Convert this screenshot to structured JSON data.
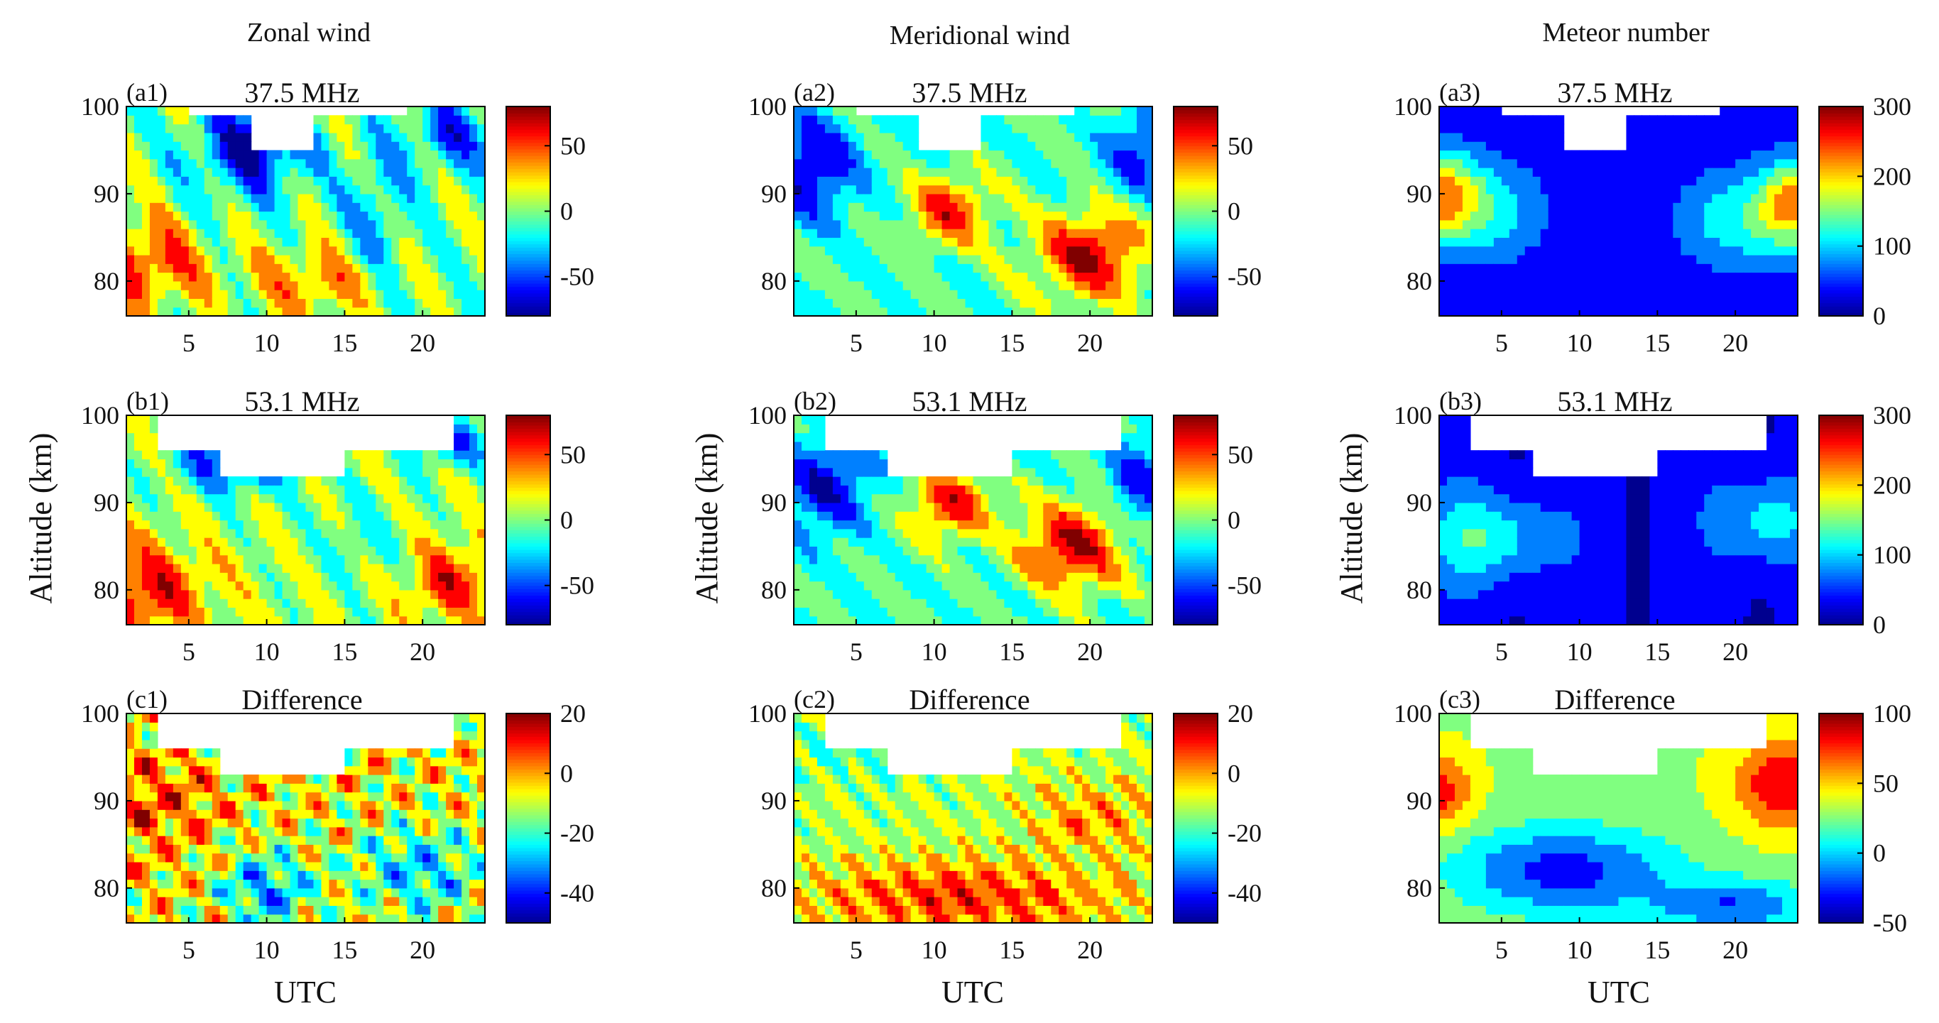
{
  "figure": {
    "column_titles": [
      "Zonal wind",
      "Meridional wind",
      "Meteor number"
    ],
    "ylabel": "Altitude (km)",
    "xlabel": "UTC",
    "colors": {
      "axis": "#000000",
      "contour_line": "#000000",
      "zero_line": "#ffffff",
      "jet": [
        "#00008f",
        "#0000ff",
        "#0080ff",
        "#00ffff",
        "#80ff80",
        "#ffff00",
        "#ff8000",
        "#ff0000",
        "#800000"
      ]
    }
  },
  "chart_data": [
    {
      "id": "a1",
      "label": "(a1)",
      "title": "37.5 MHz",
      "type": "heatmap",
      "xticks": [
        5,
        10,
        15,
        20
      ],
      "yticks": [
        80,
        90,
        100
      ],
      "xlim": [
        1,
        24
      ],
      "ylim": [
        76,
        100
      ],
      "clim": [
        -80,
        80
      ],
      "cticks": [
        50,
        0,
        -50
      ]
    },
    {
      "id": "a2",
      "label": "(a2)",
      "title": "37.5 MHz",
      "type": "heatmap",
      "xticks": [
        5,
        10,
        15,
        20
      ],
      "yticks": [
        80,
        90,
        100
      ],
      "xlim": [
        1,
        24
      ],
      "ylim": [
        76,
        100
      ],
      "clim": [
        -80,
        80
      ],
      "cticks": [
        50,
        0,
        -50
      ]
    },
    {
      "id": "a3",
      "label": "(a3)",
      "title": "37.5 MHz",
      "type": "heatmap",
      "xticks": [
        5,
        10,
        15,
        20
      ],
      "yticks": [
        80,
        90,
        100
      ],
      "xlim": [
        1,
        24
      ],
      "ylim": [
        76,
        100
      ],
      "clim": [
        0,
        300
      ],
      "cticks": [
        300,
        200,
        100,
        0
      ]
    },
    {
      "id": "b1",
      "label": "(b1)",
      "title": "53.1 MHz",
      "type": "heatmap",
      "xticks": [
        5,
        10,
        15,
        20
      ],
      "yticks": [
        80,
        90,
        100
      ],
      "xlim": [
        1,
        24
      ],
      "ylim": [
        76,
        100
      ],
      "clim": [
        -80,
        80
      ],
      "cticks": [
        50,
        0,
        -50
      ]
    },
    {
      "id": "b2",
      "label": "(b2)",
      "title": "53.1 MHz",
      "type": "heatmap",
      "xticks": [
        5,
        10,
        15,
        20
      ],
      "yticks": [
        80,
        90,
        100
      ],
      "xlim": [
        1,
        24
      ],
      "ylim": [
        76,
        100
      ],
      "clim": [
        -80,
        80
      ],
      "cticks": [
        50,
        0,
        -50
      ]
    },
    {
      "id": "b3",
      "label": "(b3)",
      "title": "53.1 MHz",
      "type": "heatmap",
      "xticks": [
        5,
        10,
        15,
        20
      ],
      "yticks": [
        80,
        90,
        100
      ],
      "xlim": [
        1,
        24
      ],
      "ylim": [
        76,
        100
      ],
      "clim": [
        0,
        300
      ],
      "cticks": [
        300,
        200,
        100,
        0
      ]
    },
    {
      "id": "c1",
      "label": "(c1)",
      "title": "Difference",
      "type": "heatmap",
      "xticks": [
        5,
        10,
        15,
        20
      ],
      "yticks": [
        80,
        90,
        100
      ],
      "xlim": [
        1,
        24
      ],
      "ylim": [
        76,
        100
      ],
      "clim": [
        -50,
        20
      ],
      "cticks": [
        20,
        0,
        -20,
        -40
      ]
    },
    {
      "id": "c2",
      "label": "(c2)",
      "title": "Difference",
      "type": "heatmap",
      "xticks": [
        5,
        10,
        15,
        20
      ],
      "yticks": [
        80,
        90,
        100
      ],
      "xlim": [
        1,
        24
      ],
      "ylim": [
        76,
        100
      ],
      "clim": [
        -50,
        20
      ],
      "cticks": [
        20,
        0,
        -20,
        -40
      ]
    },
    {
      "id": "c3",
      "label": "(c3)",
      "title": "Difference",
      "type": "heatmap",
      "xticks": [
        5,
        10,
        15,
        20
      ],
      "yticks": [
        80,
        90,
        100
      ],
      "xlim": [
        1,
        24
      ],
      "ylim": [
        76,
        100
      ],
      "clim": [
        -50,
        100
      ],
      "cticks": [
        100,
        50,
        0,
        -50
      ]
    }
  ]
}
